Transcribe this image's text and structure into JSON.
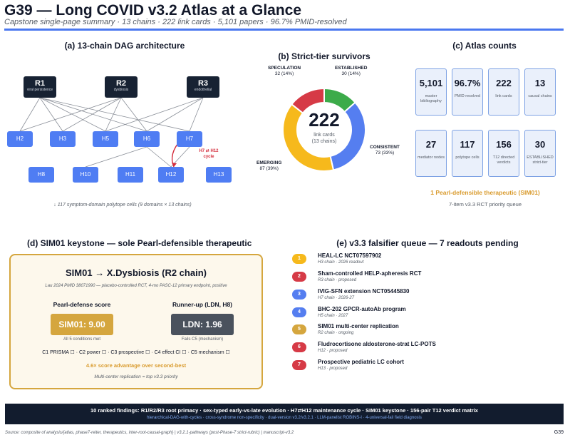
{
  "header": {
    "title": "G39 — Long COVID v3.2 Atlas at a Glance",
    "subtitle": "Capstone single-page summary · 13 chains · 222 link cards · 5,101 papers · 96.7% PMID-resolved",
    "rule_color": "#4a78f0"
  },
  "panel_a": {
    "title": "(a) 13-chain DAG architecture",
    "roots": [
      {
        "id": "R1",
        "label": "viral persistence"
      },
      {
        "id": "R2",
        "label": "dysbiosis"
      },
      {
        "id": "R3",
        "label": "endothelial"
      }
    ],
    "nodes_row1": [
      "H2",
      "H3",
      "H5",
      "H6",
      "H7"
    ],
    "nodes_row2": [
      "H8",
      "H10",
      "H11",
      "H12",
      "H13"
    ],
    "cycle_label": "H7 ⇄ H12 cycle",
    "note": "↓ 117 symptom-domain polytope cells (9 domains × 13 chains)",
    "colors": {
      "root": "#172233",
      "node": "#4f7df3",
      "cycle": "#d42d3c",
      "edge": "#8a8f98"
    }
  },
  "panel_b": {
    "title": "(b) Strict-tier survivors",
    "center_value": "222",
    "center_caption_1": "link cards",
    "center_caption_2": "(13 chains)",
    "segments": [
      {
        "name": "ESTABLISHED",
        "value": 30,
        "pct_label": "30 (14%)",
        "color": "#3cab4a"
      },
      {
        "name": "CONSISTENT",
        "value": 73,
        "pct_label": "73 (33%)",
        "color": "#557ef0"
      },
      {
        "name": "EMERGING",
        "value": 87,
        "pct_label": "87 (39%)",
        "color": "#f6b91c"
      },
      {
        "name": "SPECULATION",
        "value": 32,
        "pct_label": "32 (14%)",
        "color": "#d63a46"
      }
    ]
  },
  "panel_c": {
    "title": "(c) Atlas counts",
    "cards": [
      {
        "value": "5,101",
        "label": "master bibliography"
      },
      {
        "value": "96.7%",
        "label": "PMID resolved"
      },
      {
        "value": "222",
        "label": "link cards"
      },
      {
        "value": "13",
        "label": "causal chains"
      },
      {
        "value": "27",
        "label": "mediator nodes"
      },
      {
        "value": "117",
        "label": "polytope cells"
      },
      {
        "value": "156",
        "label": "T12 directed verdicts"
      },
      {
        "value": "30",
        "label": "ESTABLISHED strict-tier"
      }
    ],
    "therapeutic_note": "1 Pearl-defensible therapeutic (SIM01)",
    "rct_note": "7-item v3.3 RCT priority queue"
  },
  "panel_d": {
    "title": "(d) SIM01 keystone — sole Pearl-defensible therapeutic",
    "heading": "SIM01 → X.Dysbiosis (R2 chain)",
    "reference": "Lau 2024 PMID 38071990 — placebo-controlled RCT, 4-mo PASC-12 primary endpoint, positive",
    "left_head": "Pearl-defense score",
    "left_score": "SIM01: 9.00",
    "left_sub": "All 5 conditions met",
    "right_head": "Runner-up (LDN, H8)",
    "right_score": "LDN: 1.96",
    "right_sub": "Fails C5 (mechanism)",
    "criteria": "C1 PRISMA ☐ · C2 power ☐ · C3 prospective ☐ · C4 effect CI ☐ · C5 mechanism ☐",
    "advantage": "4.6× score advantage over second-best",
    "replication": "Multi-center replication = top v3.3 priority",
    "colors": {
      "left": "#d5a63e",
      "right": "#4a525d"
    }
  },
  "panel_e": {
    "title": "(e) v3.3 falsifier queue — 7 readouts pending",
    "items": [
      {
        "num": "1",
        "title": "HEAL-LC NCT07597902",
        "sub": "H3 chain · 2026 readout",
        "color": "#f6b91c"
      },
      {
        "num": "2",
        "title": "Sham-controlled HELP-apheresis RCT",
        "sub": "R3 chain · proposed",
        "color": "#d63a46"
      },
      {
        "num": "3",
        "title": "IVIG-SFN extension NCT05445830",
        "sub": "H7 chain · 2026-27",
        "color": "#557ef0"
      },
      {
        "num": "4",
        "title": "BHC-202 GPCR-autoAb program",
        "sub": "H5 chain · 2027",
        "color": "#557ef0"
      },
      {
        "num": "5",
        "title": "SIM01 multi-center replication",
        "sub": "R2 chain · ongoing",
        "color": "#d5a63e"
      },
      {
        "num": "6",
        "title": "Fludrocortisone aldosterone-strat LC-POTS",
        "sub": "H12 · proposed",
        "color": "#d63a46"
      },
      {
        "num": "7",
        "title": "Prospective pediatric LC cohort",
        "sub": "H13 · proposed",
        "color": "#d63a46"
      }
    ]
  },
  "footer": {
    "main": "10 ranked findings: R1/R2/R3 root primacy · sex-typed early-vs-late evolution · H7⇄H12 maintenance cycle · SIM01 keystone · 156-pair T12 verdict matrix",
    "sub": "hierarchical-DAG-with-cycles · cross-syndrome non-specificity · dual-version v3.2/v3.2.1 · LLM-panelist ROBINS-I · 4-universal-fail field diagnosis",
    "source": "Source: composite of analysis/{atlas, phase7-reiter, therapeutics, inter-root-causal-graph} | v3.2.1-pathways (post-Phase-7 strict-rubric) | manuscript-v3.2",
    "page_id": "G39"
  }
}
